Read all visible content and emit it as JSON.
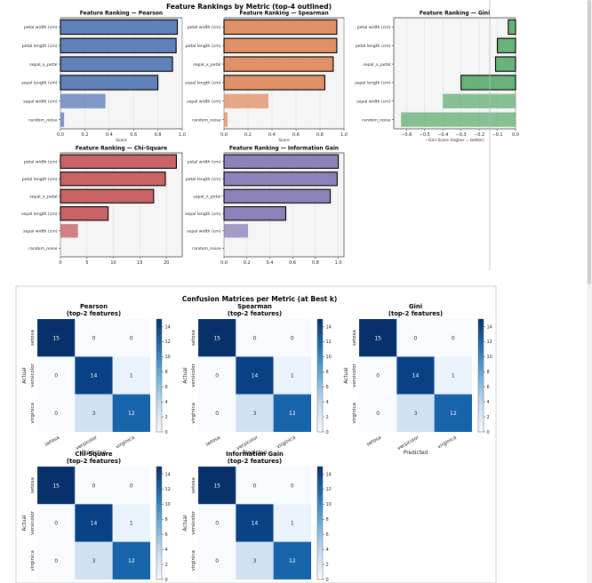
{
  "rankings": {
    "title": "Feature Rankings by Metric (top-4 outlined)",
    "features": [
      "petal width (cm)",
      "petal length (cm)",
      "sepal_x_petal",
      "sepal length (cm)",
      "sepal width (cm)",
      "random_noise"
    ],
    "panels": [
      {
        "title": "Feature Ranking — Pearson",
        "xlabel": "Score",
        "color": "#4c72b0",
        "xlim": [
          0,
          1.0
        ],
        "ticks": [
          "0.0",
          "0.2",
          "0.4",
          "0.6",
          "0.8",
          "1.0"
        ],
        "tickvals": [
          0,
          0.2,
          0.4,
          0.6,
          0.8,
          1.0
        ]
      },
      {
        "title": "Feature Ranking — Spearman",
        "xlabel": "Score",
        "color": "#dd8452",
        "xlim": [
          0,
          1.0
        ],
        "ticks": [
          "0.0",
          "0.2",
          "0.4",
          "0.6",
          "0.8",
          "1.0"
        ],
        "tickvals": [
          0,
          0.2,
          0.4,
          0.6,
          0.8,
          1.0
        ]
      },
      {
        "title": "Feature Ranking — Gini",
        "xlabel": "−Gini Score (higher = better)",
        "color": "#55a868",
        "xlim": [
          -0.67,
          0
        ],
        "ticks": [
          "−0.6",
          "−0.5",
          "−0.4",
          "−0.3",
          "−0.2",
          "−0.1",
          "0.0"
        ],
        "tickvals": [
          -0.6,
          -0.5,
          -0.4,
          -0.3,
          -0.2,
          -0.1,
          0
        ]
      },
      {
        "title": "Feature Ranking — Chi-Square",
        "xlabel": "",
        "color": "#c44e52",
        "xlim": [
          0,
          23
        ],
        "ticks": [
          "0",
          "5",
          "10",
          "15",
          "20"
        ],
        "tickvals": [
          0,
          5,
          10,
          15,
          20
        ]
      },
      {
        "title": "Feature Ranking — Information Gain",
        "xlabel": "",
        "color": "#8172b3",
        "xlim": [
          0,
          1.05
        ],
        "ticks": [
          "0.0",
          "0.2",
          "0.4",
          "0.6",
          "0.8",
          "1.0"
        ],
        "tickvals": [
          0,
          0.2,
          0.4,
          0.6,
          0.8,
          1.0
        ]
      }
    ]
  },
  "confusion": {
    "title": "Confusion Matrices per Metric (at Best k)",
    "classes": [
      "setosa",
      "versicolor",
      "virginica"
    ],
    "xlabel": "Predicted",
    "ylabel": "Actual",
    "colorbar_ticks": [
      "0",
      "2",
      "4",
      "6",
      "8",
      "10",
      "12",
      "14"
    ],
    "panels": [
      {
        "title_line1": "Pearson",
        "title_line2": "(top-2 features)"
      },
      {
        "title_line1": "Spearman",
        "title_line2": "(top-2 features)"
      },
      {
        "title_line1": "Gini",
        "title_line2": "(top-2 features)"
      },
      {
        "title_line1": "Chi-Square",
        "title_line2": "(top-2 features)"
      },
      {
        "title_line1": "Information Gain",
        "title_line2": "(top-2 features)"
      }
    ]
  },
  "chart_data": [
    {
      "type": "bar",
      "title": "Feature Ranking — Pearson",
      "xlabel": "Score",
      "orientation": "horizontal",
      "categories": [
        "petal width (cm)",
        "petal length (cm)",
        "sepal_x_petal",
        "sepal length (cm)",
        "sepal width (cm)",
        "random_noise"
      ],
      "values": [
        0.96,
        0.95,
        0.92,
        0.8,
        0.37,
        0.03
      ],
      "outlined_top": 4,
      "xlim": [
        0,
        1.0
      ]
    },
    {
      "type": "bar",
      "title": "Feature Ranking — Spearman",
      "xlabel": "Score",
      "orientation": "horizontal",
      "categories": [
        "petal width (cm)",
        "petal length (cm)",
        "sepal_x_petal",
        "sepal length (cm)",
        "sepal width (cm)",
        "random_noise"
      ],
      "values": [
        0.94,
        0.94,
        0.91,
        0.84,
        0.37,
        0.03
      ],
      "outlined_top": 4,
      "xlim": [
        0,
        1.0
      ]
    },
    {
      "type": "bar",
      "title": "Feature Ranking — Gini",
      "xlabel": "−Gini Score (higher = better)",
      "orientation": "horizontal",
      "categories": [
        "petal width (cm)",
        "petal length (cm)",
        "sepal_x_petal",
        "sepal length (cm)",
        "sepal width (cm)",
        "random_noise"
      ],
      "values": [
        -0.04,
        -0.1,
        -0.11,
        -0.3,
        -0.4,
        -0.63
      ],
      "outlined_top": 4,
      "xlim": [
        -0.67,
        0
      ]
    },
    {
      "type": "bar",
      "title": "Feature Ranking — Chi-Square",
      "xlabel": "",
      "orientation": "horizontal",
      "categories": [
        "petal width (cm)",
        "petal length (cm)",
        "sepal_x_petal",
        "sepal length (cm)",
        "sepal width (cm)",
        "random_noise"
      ],
      "values": [
        21.9,
        19.8,
        17.6,
        9.0,
        3.3,
        0.0
      ],
      "outlined_top": 4,
      "xlim": [
        0,
        23
      ]
    },
    {
      "type": "bar",
      "title": "Feature Ranking — Information Gain",
      "xlabel": "",
      "orientation": "horizontal",
      "categories": [
        "petal width (cm)",
        "petal length (cm)",
        "sepal_x_petal",
        "sepal length (cm)",
        "sepal width (cm)",
        "random_noise"
      ],
      "values": [
        1.0,
        0.99,
        0.93,
        0.54,
        0.21,
        0.0
      ],
      "outlined_top": 4,
      "xlim": [
        0,
        1.05
      ]
    },
    {
      "type": "heatmap",
      "title": "Pearson (top-2 features)",
      "xlabel": "Predicted",
      "ylabel": "Actual",
      "x": [
        "setosa",
        "versicolor",
        "virginica"
      ],
      "y": [
        "setosa",
        "versicolor",
        "virginica"
      ],
      "values": [
        [
          15,
          0,
          0
        ],
        [
          0,
          14,
          1
        ],
        [
          0,
          3,
          12
        ]
      ],
      "vmin": 0,
      "vmax": 15
    },
    {
      "type": "heatmap",
      "title": "Spearman (top-2 features)",
      "xlabel": "Predicted",
      "ylabel": "Actual",
      "x": [
        "setosa",
        "versicolor",
        "virginica"
      ],
      "y": [
        "setosa",
        "versicolor",
        "virginica"
      ],
      "values": [
        [
          15,
          0,
          0
        ],
        [
          0,
          14,
          1
        ],
        [
          0,
          3,
          12
        ]
      ],
      "vmin": 0,
      "vmax": 15
    },
    {
      "type": "heatmap",
      "title": "Gini (top-2 features)",
      "xlabel": "Predicted",
      "ylabel": "Actual",
      "x": [
        "setosa",
        "versicolor",
        "virginica"
      ],
      "y": [
        "setosa",
        "versicolor",
        "virginica"
      ],
      "values": [
        [
          15,
          0,
          0
        ],
        [
          0,
          14,
          1
        ],
        [
          0,
          3,
          12
        ]
      ],
      "vmin": 0,
      "vmax": 15
    },
    {
      "type": "heatmap",
      "title": "Chi-Square (top-2 features)",
      "xlabel": "Predicted",
      "ylabel": "Actual",
      "x": [
        "setosa",
        "versicolor",
        "virginica"
      ],
      "y": [
        "setosa",
        "versicolor",
        "virginica"
      ],
      "values": [
        [
          15,
          0,
          0
        ],
        [
          0,
          14,
          1
        ],
        [
          0,
          3,
          12
        ]
      ],
      "vmin": 0,
      "vmax": 15
    },
    {
      "type": "heatmap",
      "title": "Information Gain (top-2 features)",
      "xlabel": "Predicted",
      "ylabel": "Actual",
      "x": [
        "setosa",
        "versicolor",
        "virginica"
      ],
      "y": [
        "setosa",
        "versicolor",
        "virginica"
      ],
      "values": [
        [
          15,
          0,
          0
        ],
        [
          0,
          14,
          1
        ],
        [
          0,
          3,
          12
        ]
      ],
      "vmin": 0,
      "vmax": 15
    }
  ]
}
